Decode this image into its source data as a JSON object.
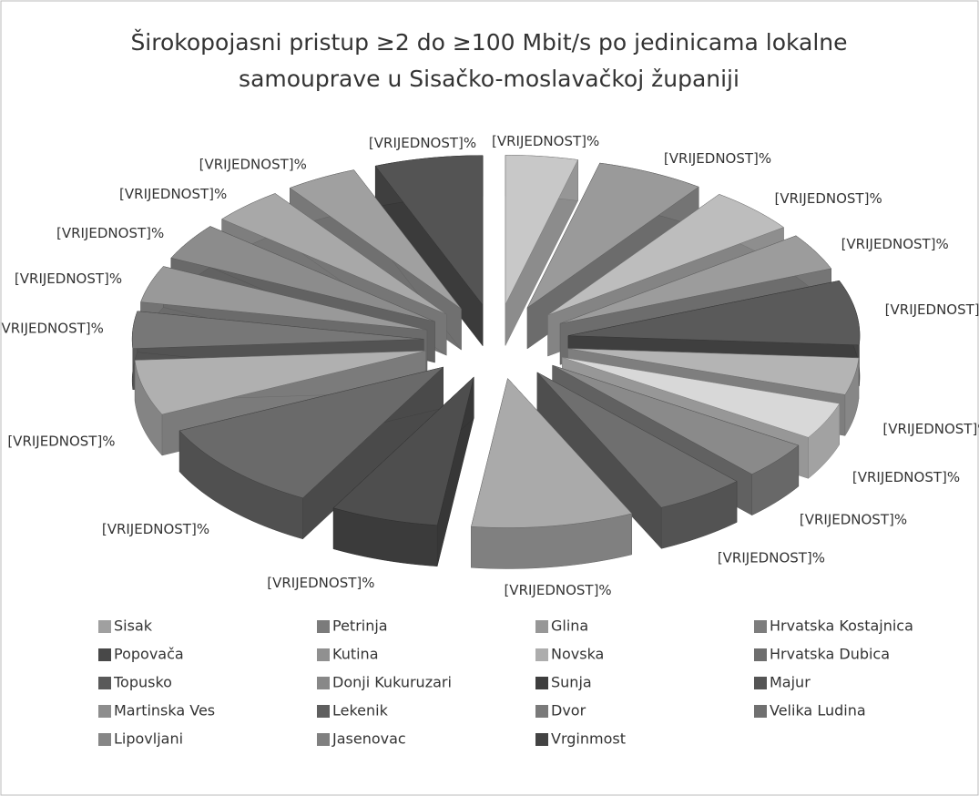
{
  "chart_data": {
    "type": "pie",
    "title": [
      "Širokopojasni pristup ≥2 do ≥100 Mbit/s po jedinicama lokalne",
      "samouprave u Sisačko-moslavačkoj županiji"
    ],
    "categories": [
      "Sisak",
      "Petrinja",
      "Glina",
      "Hrvatska Kostajnica",
      "Popovača",
      "Kutina",
      "Novska",
      "Hrvatska Dubica",
      "Topusko",
      "Donji Kukuruzari",
      "Sunja",
      "Majur",
      "Martinska Ves",
      "Lekenik",
      "Dvor",
      "Velika Ludina",
      "Lipovljani",
      "Jasenovac",
      "Vrginmost"
    ],
    "values": [
      4,
      6,
      5,
      4,
      7,
      4,
      4,
      4,
      5,
      9,
      6,
      10,
      6,
      4,
      4,
      4,
      4,
      4,
      6
    ],
    "value_labels": [
      "[VRIJEDNOST]%",
      "[VRIJEDNOST]%",
      "[VRIJEDNOST]%",
      "[VRIJEDNOST]%",
      "[VRIJEDNOST]%",
      "[VRIJEDNOST]%",
      "[VRIJEDNOST]%",
      "[VRIJEDNOST]%",
      "[VRIJEDNOST]%",
      "[VRIJEDNOST]%",
      "[VRIJEDNOST]%",
      "[VRIJEDNOST]%",
      "[VRIJEDNOST]%",
      "[VRIJEDNOST]%",
      "[VRIJEDNOST]%",
      "[VRIJEDNOST]%",
      "[VRIJEDNOST]%",
      "[VRIJEDNOST]%",
      "[VRIJEDNOST]%"
    ],
    "colors": [
      "#c8c8c8",
      "#9a9a9a",
      "#bdbdbd",
      "#9c9c9c",
      "#5a5a5a",
      "#b4b4b4",
      "#d8d8d8",
      "#8a8a8a",
      "#6f6f6f",
      "#aaaaaa",
      "#4e4e4e",
      "#6a6a6a",
      "#b0b0b0",
      "#777777",
      "#999999",
      "#8c8c8c",
      "#a8a8a8",
      "#a0a0a0",
      "#545454"
    ],
    "legend": "bottom"
  }
}
